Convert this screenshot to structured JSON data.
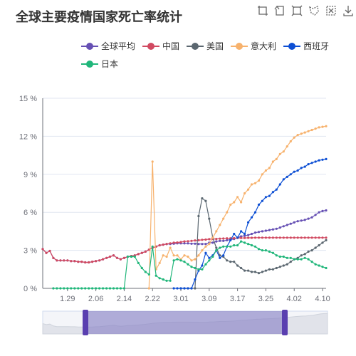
{
  "title": "全球主要疫情国家死亡率统计",
  "toolbox": [
    {
      "name": "zoom-icon"
    },
    {
      "name": "zoom-reset-icon"
    },
    {
      "name": "restore-icon"
    },
    {
      "name": "lasso-icon"
    },
    {
      "name": "clear-icon"
    },
    {
      "name": "download-icon"
    }
  ],
  "chart_data": {
    "type": "line",
    "ylim": [
      0,
      15
    ],
    "yticks": [
      "0 %",
      "3 %",
      "6 %",
      "9 %",
      "12 %",
      "15 %"
    ],
    "x_tick_labels": [
      "1.29",
      "2.06",
      "2.14",
      "2.22",
      "3.01",
      "3.09",
      "3.17",
      "3.25",
      "4.02",
      "4.10"
    ],
    "x": [
      "1.22",
      "1.23",
      "1.24",
      "1.25",
      "1.26",
      "1.27",
      "1.28",
      "1.29",
      "1.30",
      "1.31",
      "2.01",
      "2.02",
      "2.03",
      "2.04",
      "2.05",
      "2.06",
      "2.07",
      "2.08",
      "2.09",
      "2.10",
      "2.11",
      "2.12",
      "2.13",
      "2.14",
      "2.15",
      "2.16",
      "2.17",
      "2.18",
      "2.19",
      "2.20",
      "2.21",
      "2.22",
      "2.23",
      "2.24",
      "2.25",
      "2.26",
      "2.27",
      "2.28",
      "2.29",
      "3.01",
      "3.02",
      "3.03",
      "3.04",
      "3.05",
      "3.06",
      "3.07",
      "3.08",
      "3.09",
      "3.10",
      "3.11",
      "3.12",
      "3.13",
      "3.14",
      "3.15",
      "3.16",
      "3.17",
      "3.18",
      "3.19",
      "3.20",
      "3.21",
      "3.22",
      "3.23",
      "3.24",
      "3.25",
      "3.26",
      "3.27",
      "3.28",
      "3.29",
      "3.30",
      "3.31",
      "4.01",
      "4.02",
      "4.03",
      "4.04",
      "4.05",
      "4.06",
      "4.07",
      "4.08",
      "4.09",
      "4.10",
      "4.11"
    ],
    "series": [
      {
        "name": "全球平均",
        "color": "#6650b4",
        "values": [
          3.1,
          2.8,
          2.95,
          2.4,
          2.2,
          2.2,
          2.2,
          2.2,
          2.15,
          2.15,
          2.1,
          2.1,
          2.05,
          2.05,
          2.1,
          2.15,
          2.2,
          2.3,
          2.4,
          2.5,
          2.6,
          2.4,
          2.3,
          2.4,
          2.5,
          2.55,
          2.6,
          2.7,
          2.8,
          2.9,
          3.05,
          3.2,
          3.3,
          3.4,
          3.45,
          3.5,
          3.5,
          3.52,
          3.55,
          3.55,
          3.55,
          3.55,
          3.52,
          3.52,
          3.5,
          3.5,
          3.5,
          3.6,
          3.6,
          3.7,
          3.75,
          3.75,
          3.8,
          3.85,
          3.9,
          4.0,
          4.1,
          4.15,
          4.2,
          4.3,
          4.4,
          4.45,
          4.5,
          4.55,
          4.6,
          4.65,
          4.7,
          4.8,
          4.9,
          5.0,
          5.1,
          5.2,
          5.3,
          5.35,
          5.4,
          5.5,
          5.6,
          5.8,
          6.0,
          6.1,
          6.15
        ]
      },
      {
        "name": "中国",
        "color": "#d14a61",
        "values": [
          3.1,
          2.8,
          2.95,
          2.4,
          2.2,
          2.2,
          2.2,
          2.2,
          2.15,
          2.15,
          2.1,
          2.1,
          2.05,
          2.05,
          2.1,
          2.15,
          2.2,
          2.3,
          2.4,
          2.5,
          2.6,
          2.4,
          2.3,
          2.4,
          2.5,
          2.55,
          2.6,
          2.7,
          2.8,
          2.9,
          3.05,
          3.2,
          3.3,
          3.4,
          3.45,
          3.5,
          3.55,
          3.6,
          3.62,
          3.65,
          3.7,
          3.72,
          3.75,
          3.78,
          3.8,
          3.83,
          3.85,
          3.88,
          3.9,
          3.9,
          3.92,
          3.93,
          3.95,
          3.95,
          3.96,
          3.97,
          3.98,
          3.98,
          3.99,
          3.99,
          4.0,
          4.0,
          4.0,
          4.0,
          4.0,
          4.0,
          4.0,
          4.0,
          4.0,
          4.0,
          4.0,
          4.0,
          4.0,
          4.0,
          4.0,
          4.0,
          4.0,
          4.0,
          4.0,
          4.0,
          4.0
        ]
      },
      {
        "name": "美国",
        "color": "#5b6770",
        "values": [
          null,
          null,
          null,
          null,
          null,
          null,
          null,
          null,
          null,
          null,
          null,
          null,
          null,
          null,
          null,
          null,
          null,
          null,
          null,
          null,
          null,
          null,
          null,
          null,
          null,
          null,
          null,
          null,
          null,
          null,
          null,
          null,
          null,
          null,
          null,
          null,
          null,
          null,
          null,
          0,
          0,
          0,
          0,
          0,
          5.7,
          7.1,
          6.9,
          5.5,
          4.0,
          3.2,
          2.6,
          2.5,
          2.2,
          2.1,
          2.1,
          1.8,
          1.6,
          1.4,
          1.4,
          1.3,
          1.3,
          1.2,
          1.3,
          1.4,
          1.5,
          1.5,
          1.6,
          1.7,
          1.8,
          1.9,
          2.1,
          2.3,
          2.4,
          2.6,
          2.7,
          2.9,
          3.0,
          3.2,
          3.4,
          3.6,
          3.8
        ]
      },
      {
        "name": "意大利",
        "color": "#f7b26d",
        "values": [
          null,
          null,
          null,
          null,
          null,
          null,
          null,
          null,
          null,
          null,
          null,
          null,
          null,
          null,
          null,
          null,
          null,
          null,
          null,
          null,
          null,
          null,
          null,
          null,
          null,
          null,
          null,
          null,
          null,
          null,
          0,
          10.0,
          1.5,
          2.0,
          2.6,
          2.5,
          3.2,
          2.6,
          2.6,
          2.3,
          2.6,
          2.5,
          2.2,
          2.3,
          2.6,
          3.0,
          3.3,
          3.5,
          4.0,
          4.5,
          5.0,
          5.5,
          6.0,
          6.6,
          6.8,
          7.2,
          6.8,
          7.5,
          7.8,
          8.2,
          8.3,
          8.5,
          9.0,
          9.3,
          9.5,
          10.0,
          10.2,
          10.6,
          10.8,
          11.2,
          11.6,
          11.9,
          12.1,
          12.2,
          12.3,
          12.4,
          12.5,
          12.6,
          12.7,
          12.75,
          12.8
        ]
      },
      {
        "name": "西班牙",
        "color": "#0d4fd4",
        "values": [
          null,
          null,
          null,
          null,
          null,
          null,
          null,
          null,
          null,
          null,
          null,
          null,
          null,
          null,
          null,
          null,
          null,
          null,
          null,
          null,
          null,
          null,
          null,
          null,
          null,
          null,
          null,
          null,
          null,
          null,
          null,
          null,
          null,
          null,
          null,
          null,
          null,
          0,
          0,
          0,
          0,
          0,
          0,
          0.7,
          1.4,
          1.8,
          2.8,
          2.4,
          2.6,
          3.0,
          2.4,
          2.6,
          3.3,
          3.8,
          4.3,
          4.0,
          4.5,
          4.3,
          5.2,
          5.6,
          6.0,
          6.6,
          6.9,
          7.2,
          7.3,
          7.6,
          7.8,
          8.2,
          8.6,
          8.8,
          9.0,
          9.2,
          9.3,
          9.5,
          9.6,
          9.8,
          9.9,
          10.0,
          10.1,
          10.15,
          10.2
        ]
      },
      {
        "name": "日本",
        "color": "#20b67a",
        "values": [
          null,
          null,
          null,
          0,
          0,
          0,
          0,
          0,
          0,
          0,
          0,
          0,
          0,
          0,
          0,
          0,
          0,
          0,
          0,
          0,
          0,
          0,
          0,
          0,
          2.5,
          2.5,
          2.5,
          2.0,
          1.6,
          1.3,
          1.1,
          3.3,
          1.0,
          0.8,
          0.7,
          0.6,
          0.6,
          2.2,
          2.3,
          2.2,
          2.1,
          1.9,
          1.7,
          1.6,
          1.5,
          1.5,
          1.9,
          2.2,
          2.5,
          3.0,
          3.2,
          3.3,
          3.3,
          3.3,
          3.4,
          3.4,
          3.7,
          3.6,
          3.5,
          3.4,
          3.3,
          3.1,
          3.0,
          3.0,
          2.9,
          2.8,
          2.6,
          2.5,
          2.5,
          2.4,
          2.4,
          2.3,
          2.3,
          2.3,
          2.4,
          2.3,
          2.1,
          1.9,
          1.8,
          1.7,
          1.6
        ]
      }
    ],
    "datazoom": {
      "start": 0.15,
      "end": 0.85
    }
  }
}
